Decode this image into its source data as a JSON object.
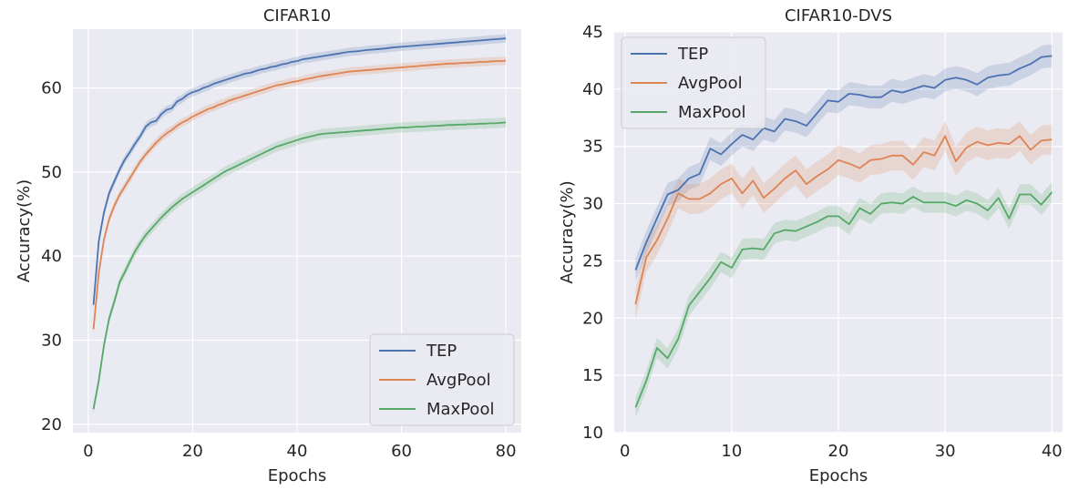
{
  "chart_data": [
    {
      "type": "line",
      "title": "CIFAR10",
      "xlabel": "Epochs",
      "ylabel": "Accuracy(%)",
      "xlim": [
        -2.95,
        82.95
      ],
      "ylim": [
        19.0,
        67.0
      ],
      "xticks": [
        0,
        20,
        40,
        60,
        80
      ],
      "yticks": [
        20,
        30,
        40,
        50,
        60
      ],
      "grid": true,
      "legend_position": "lower-right",
      "x": [
        1,
        2,
        3,
        4,
        5,
        6,
        7,
        8,
        9,
        10,
        11,
        12,
        13,
        14,
        15,
        16,
        17,
        18,
        19,
        20,
        21,
        22,
        23,
        24,
        25,
        26,
        27,
        28,
        29,
        30,
        31,
        32,
        33,
        34,
        35,
        36,
        37,
        38,
        39,
        40,
        41,
        42,
        43,
        44,
        45,
        46,
        47,
        48,
        49,
        50,
        51,
        52,
        53,
        54,
        55,
        56,
        57,
        58,
        59,
        60,
        61,
        62,
        63,
        64,
        65,
        66,
        67,
        68,
        69,
        70,
        71,
        72,
        73,
        74,
        75,
        76,
        77,
        78,
        79,
        80
      ],
      "series": [
        {
          "name": "TEP",
          "color": "#4c72b0",
          "band": 0.5,
          "values": [
            34.2,
            41.8,
            45.2,
            47.5,
            48.9,
            50.3,
            51.5,
            52.4,
            53.4,
            54.3,
            55.4,
            55.9,
            56.1,
            56.9,
            57.4,
            57.6,
            58.4,
            58.7,
            59.2,
            59.5,
            59.7,
            60.0,
            60.2,
            60.5,
            60.7,
            60.9,
            61.1,
            61.3,
            61.5,
            61.7,
            61.8,
            62.0,
            62.2,
            62.3,
            62.5,
            62.6,
            62.8,
            62.9,
            63.1,
            63.2,
            63.4,
            63.5,
            63.6,
            63.7,
            63.8,
            63.9,
            64.0,
            64.1,
            64.2,
            64.3,
            64.35,
            64.4,
            64.5,
            64.55,
            64.6,
            64.65,
            64.7,
            64.8,
            64.85,
            64.9,
            64.95,
            65.0,
            65.05,
            65.1,
            65.15,
            65.2,
            65.25,
            65.3,
            65.35,
            65.4,
            65.45,
            65.5,
            65.55,
            65.6,
            65.65,
            65.7,
            65.75,
            65.8,
            65.85,
            65.9
          ]
        },
        {
          "name": "AvgPool",
          "color": "#dd8452",
          "band": 0.5,
          "values": [
            31.3,
            38.0,
            42.0,
            44.4,
            46.0,
            47.3,
            48.3,
            49.3,
            50.3,
            51.3,
            52.1,
            52.8,
            53.5,
            54.1,
            54.6,
            55.0,
            55.5,
            55.9,
            56.2,
            56.6,
            56.9,
            57.2,
            57.5,
            57.7,
            58.0,
            58.2,
            58.5,
            58.7,
            58.9,
            59.1,
            59.3,
            59.5,
            59.7,
            59.9,
            60.1,
            60.3,
            60.4,
            60.55,
            60.7,
            60.8,
            60.95,
            61.1,
            61.2,
            61.35,
            61.45,
            61.55,
            61.65,
            61.75,
            61.85,
            61.95,
            62.0,
            62.05,
            62.1,
            62.15,
            62.2,
            62.25,
            62.3,
            62.35,
            62.4,
            62.45,
            62.5,
            62.55,
            62.6,
            62.65,
            62.7,
            62.75,
            62.8,
            62.85,
            62.9,
            62.9,
            62.95,
            63.0,
            63.0,
            63.05,
            63.1,
            63.1,
            63.15,
            63.2,
            63.2,
            63.25
          ]
        },
        {
          "name": "MaxPool",
          "color": "#55a868",
          "band": 0.6,
          "values": [
            21.8,
            25.2,
            29.4,
            32.6,
            34.6,
            36.9,
            38.1,
            39.4,
            40.6,
            41.6,
            42.5,
            43.2,
            43.9,
            44.6,
            45.2,
            45.8,
            46.3,
            46.8,
            47.2,
            47.6,
            48.0,
            48.4,
            48.8,
            49.2,
            49.6,
            50.0,
            50.3,
            50.6,
            50.9,
            51.2,
            51.5,
            51.8,
            52.1,
            52.4,
            52.7,
            53.0,
            53.2,
            53.4,
            53.6,
            53.8,
            54.0,
            54.15,
            54.3,
            54.45,
            54.55,
            54.6,
            54.65,
            54.7,
            54.75,
            54.8,
            54.85,
            54.9,
            54.95,
            55.0,
            55.05,
            55.1,
            55.15,
            55.2,
            55.25,
            55.3,
            55.3,
            55.35,
            55.4,
            55.4,
            55.45,
            55.5,
            55.5,
            55.55,
            55.6,
            55.6,
            55.65,
            55.65,
            55.7,
            55.7,
            55.75,
            55.75,
            55.8,
            55.8,
            55.85,
            55.9
          ]
        }
      ]
    },
    {
      "type": "line",
      "title": "CIFAR10-DVS",
      "xlabel": "Epochs",
      "ylabel": "Accuracy(%)",
      "xlim": [
        -1.0,
        41.0
      ],
      "ylim": [
        10.0,
        45.0
      ],
      "xticks": [
        0,
        10,
        20,
        30,
        40
      ],
      "yticks": [
        10,
        15,
        20,
        25,
        30,
        35,
        40,
        45
      ],
      "grid": true,
      "legend_position": "top-left",
      "x": [
        1,
        2,
        3,
        4,
        5,
        6,
        7,
        8,
        9,
        10,
        11,
        12,
        13,
        14,
        15,
        16,
        17,
        18,
        19,
        20,
        21,
        22,
        23,
        24,
        25,
        26,
        27,
        28,
        29,
        30,
        31,
        32,
        33,
        34,
        35,
        36,
        37,
        38,
        39,
        40
      ],
      "series": [
        {
          "name": "TEP",
          "color": "#4c72b0",
          "band": 1.0,
          "values": [
            24.2,
            26.6,
            28.7,
            30.8,
            31.2,
            32.2,
            32.6,
            34.8,
            34.3,
            35.2,
            36.0,
            35.6,
            36.6,
            36.3,
            37.4,
            37.2,
            36.8,
            37.9,
            39.0,
            38.9,
            39.6,
            39.5,
            39.3,
            39.3,
            39.9,
            39.7,
            40.0,
            40.3,
            40.1,
            40.8,
            41.0,
            40.8,
            40.4,
            41.0,
            41.2,
            41.3,
            41.8,
            42.2,
            42.8,
            42.9
          ]
        },
        {
          "name": "AvgPool",
          "color": "#dd8452",
          "band": 1.3,
          "values": [
            21.2,
            25.3,
            26.8,
            28.7,
            30.9,
            30.4,
            30.4,
            30.9,
            31.7,
            32.2,
            30.9,
            32.0,
            30.5,
            31.3,
            32.2,
            32.9,
            31.7,
            32.4,
            33.0,
            33.8,
            33.5,
            33.1,
            33.8,
            33.9,
            34.2,
            34.2,
            33.4,
            34.5,
            34.2,
            35.9,
            33.7,
            34.9,
            35.4,
            35.1,
            35.3,
            35.2,
            35.9,
            34.7,
            35.5,
            35.6
          ]
        },
        {
          "name": "MaxPool",
          "color": "#55a868",
          "band": 0.9,
          "values": [
            12.2,
            14.5,
            17.4,
            16.5,
            18.2,
            21.1,
            22.3,
            23.5,
            24.9,
            24.4,
            26.0,
            26.1,
            26.0,
            27.4,
            27.7,
            27.6,
            28.0,
            28.4,
            28.9,
            28.9,
            28.2,
            29.6,
            29.1,
            30.0,
            30.1,
            30.0,
            30.6,
            30.1,
            30.1,
            30.1,
            29.8,
            30.3,
            30.0,
            29.4,
            30.5,
            28.7,
            30.8,
            30.8,
            29.9,
            31.0
          ]
        }
      ]
    }
  ]
}
